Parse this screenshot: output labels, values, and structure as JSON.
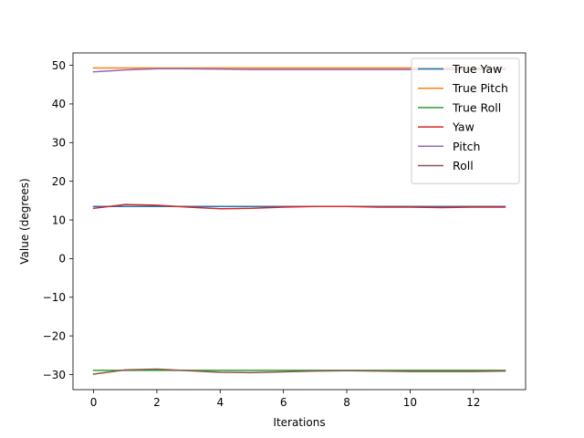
{
  "chart_data": {
    "type": "line",
    "title": "",
    "xlabel": "Iterations",
    "ylabel": "Value (degrees)",
    "xlim": [
      -0.65,
      13.65
    ],
    "ylim": [
      -33.9,
      53.2
    ],
    "x_ticks": [
      0,
      2,
      4,
      6,
      8,
      10,
      12
    ],
    "y_ticks": [
      -30,
      -20,
      -10,
      0,
      10,
      20,
      30,
      40,
      50
    ],
    "x_tick_labels": [
      "0",
      "2",
      "4",
      "6",
      "8",
      "10",
      "12"
    ],
    "y_tick_labels": [
      "−30",
      "−20",
      "−10",
      "0",
      "10",
      "20",
      "30",
      "40",
      "50"
    ],
    "grid": false,
    "legend_position": "top-right",
    "x": [
      0,
      1,
      2,
      3,
      4,
      5,
      6,
      7,
      8,
      9,
      10,
      11,
      12,
      13
    ],
    "series": [
      {
        "name": "True Yaw",
        "color": "#1f77b4",
        "values": [
          13.5,
          13.5,
          13.5,
          13.5,
          13.5,
          13.5,
          13.5,
          13.5,
          13.5,
          13.5,
          13.5,
          13.5,
          13.5,
          13.5
        ]
      },
      {
        "name": "True Pitch",
        "color": "#ff7f0e",
        "values": [
          49.3,
          49.3,
          49.3,
          49.3,
          49.3,
          49.3,
          49.3,
          49.3,
          49.3,
          49.3,
          49.3,
          49.3,
          49.3,
          49.3
        ]
      },
      {
        "name": "True Roll",
        "color": "#2ca02c",
        "values": [
          -28.9,
          -28.9,
          -28.9,
          -28.9,
          -28.9,
          -28.9,
          -28.9,
          -28.9,
          -28.9,
          -28.9,
          -28.9,
          -28.9,
          -28.9,
          -28.9
        ]
      },
      {
        "name": "Yaw",
        "color": "#d62728",
        "values": [
          13.0,
          14.0,
          13.8,
          13.3,
          12.9,
          13.0,
          13.3,
          13.5,
          13.5,
          13.3,
          13.3,
          13.2,
          13.3,
          13.3
        ]
      },
      {
        "name": "Pitch",
        "color": "#9467bd",
        "values": [
          48.3,
          48.8,
          49.1,
          49.1,
          49.0,
          48.9,
          48.9,
          48.9,
          48.9,
          48.9,
          48.9,
          48.9,
          48.9,
          48.9
        ]
      },
      {
        "name": "Roll",
        "color": "#8c564b",
        "values": [
          -29.9,
          -28.8,
          -28.6,
          -29.0,
          -29.4,
          -29.5,
          -29.3,
          -29.1,
          -29.0,
          -29.1,
          -29.2,
          -29.2,
          -29.2,
          -29.1
        ]
      }
    ]
  }
}
